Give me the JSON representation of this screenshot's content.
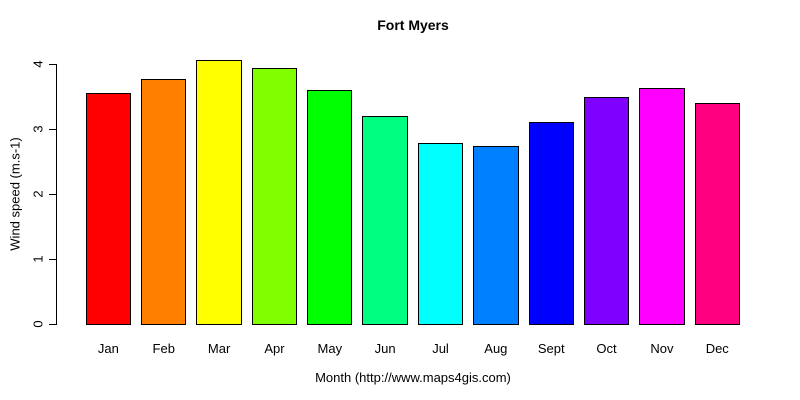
{
  "title": "Fort Myers",
  "chart_data": {
    "type": "bar",
    "title": "Fort Myers",
    "xlabel": "Month (http://www.maps4gis.com)",
    "ylabel": "Wind speed (m.s-1)",
    "categories": [
      "Jan",
      "Feb",
      "Mar",
      "Apr",
      "May",
      "Jun",
      "Jul",
      "Aug",
      "Sept",
      "Oct",
      "Nov",
      "Dec"
    ],
    "values": [
      3.56,
      3.78,
      4.07,
      3.95,
      3.6,
      3.21,
      2.79,
      2.75,
      3.12,
      3.5,
      3.64,
      3.41
    ],
    "colors": [
      "#FF0000",
      "#FF8000",
      "#FFFF00",
      "#80FF00",
      "#00FF00",
      "#00FF80",
      "#00FFFF",
      "#0080FF",
      "#0000FF",
      "#8000FF",
      "#FF00FF",
      "#FF0080"
    ],
    "yticks": [
      0,
      1,
      2,
      3,
      4
    ],
    "ylim": [
      0,
      4
    ],
    "bar_border_color": "#000000",
    "text_color": "#000000",
    "background": "#FFFFFF",
    "grid": false,
    "legend": false,
    "y_tick_labels_rotated": true
  }
}
